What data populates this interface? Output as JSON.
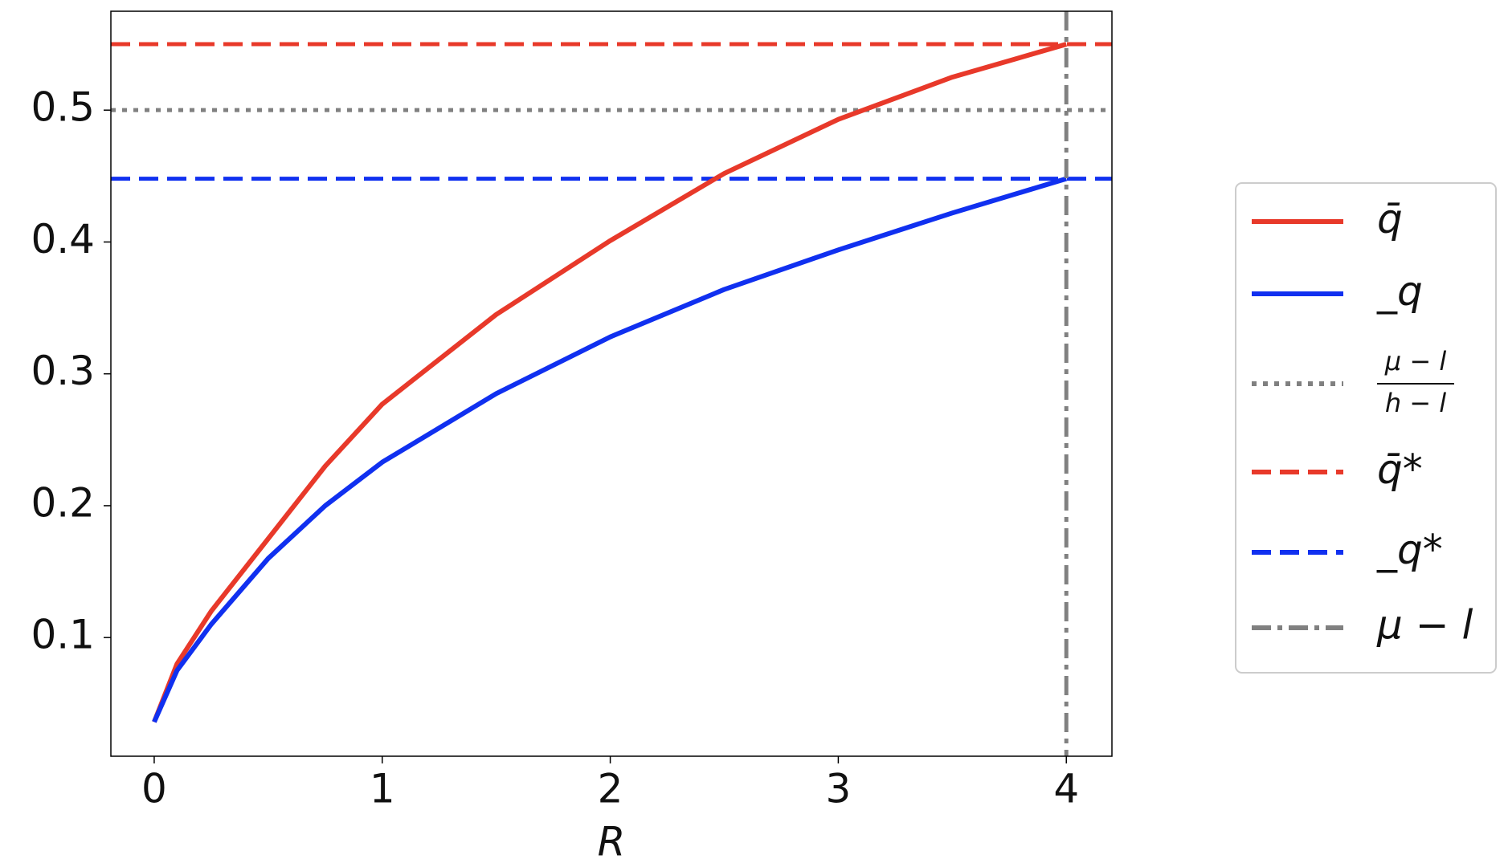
{
  "chart_data": {
    "type": "line",
    "xlabel": "R",
    "x": [
      0,
      0.1,
      0.25,
      0.5,
      0.75,
      1,
      1.5,
      2,
      2.5,
      3,
      3.5,
      4
    ],
    "series": [
      {
        "name": "q̄",
        "color": "#e8392a",
        "values": [
          0.036,
          0.08,
          0.12,
          0.175,
          0.23,
          0.277,
          0.345,
          0.401,
          0.452,
          0.493,
          0.525,
          0.55
        ]
      },
      {
        "name": "_q",
        "color": "#1030f0",
        "values": [
          0.036,
          0.075,
          0.11,
          0.16,
          0.2,
          0.233,
          0.285,
          0.328,
          0.364,
          0.394,
          0.422,
          0.448
        ]
      }
    ],
    "hlines": [
      {
        "name": [
          "μ − l",
          "h − l"
        ],
        "color": "#808080",
        "style": "dotted",
        "y": 0.5
      },
      {
        "name": "q̄*",
        "color": "#e8392a",
        "style": "dashed",
        "y": 0.55
      },
      {
        "name": "_q*",
        "color": "#1030f0",
        "style": "dashed",
        "y": 0.448
      }
    ],
    "vlines": [
      {
        "name": "μ − l",
        "color": "#808080",
        "style": "dashdot",
        "x": 4
      }
    ],
    "xlim": [
      -0.19,
      4.2
    ],
    "ylim": [
      0.01,
      0.575
    ],
    "xticks": [
      0,
      1,
      2,
      3,
      4
    ],
    "yticks": [
      0.1,
      0.2,
      0.3,
      0.4,
      0.5
    ],
    "legend": "right"
  }
}
